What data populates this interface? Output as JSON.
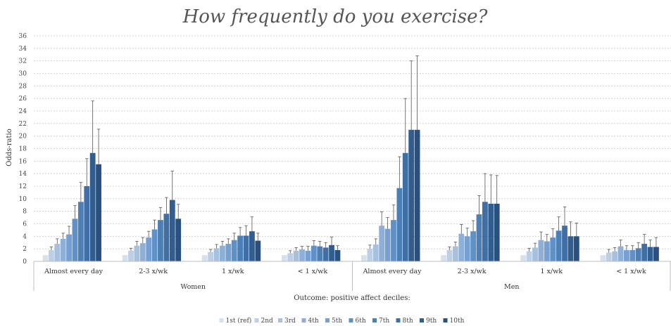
{
  "chart_data": {
    "type": "bar",
    "title": "How frequently do you exercise?",
    "ylabel": "Odds-ratio",
    "xlabel": "Outcome: positive affect deciles:",
    "ylim": [
      0,
      36
    ],
    "yticks": [
      0,
      2,
      4,
      6,
      8,
      10,
      12,
      14,
      16,
      18,
      20,
      22,
      24,
      26,
      28,
      30,
      32,
      34,
      36
    ],
    "grid": true,
    "legend_position": "bottom",
    "groups": [
      {
        "label": "Women",
        "categories": [
          "Almost every day",
          "2-3 x/wk",
          "1 x/wk",
          "< 1 x/wk"
        ]
      },
      {
        "label": "Men",
        "categories": [
          "Almost every day",
          "2-3 x/wk",
          "1 x/wk",
          "< 1 x/wk"
        ]
      }
    ],
    "categories": [
      "Women - Almost every day",
      "Women - 2-3 x/wk",
      "Women - 1 x/wk",
      "Women - < 1 x/wk",
      "Men - Almost every day",
      "Men - 2-3 x/wk",
      "Men - 1 x/wk",
      "Men - < 1 x/wk"
    ],
    "series": [
      {
        "name": "1st (ref)",
        "color": "#d6e1ee",
        "values": [
          1,
          1,
          1,
          1,
          1,
          1,
          1,
          1
        ],
        "error_upper": [
          1,
          1,
          1,
          1,
          1,
          1,
          1,
          1
        ]
      },
      {
        "name": "2nd",
        "color": "#bccfe5",
        "values": [
          1.8,
          1.7,
          1.5,
          1.3,
          2.0,
          1.8,
          1.6,
          1.4
        ],
        "error_upper": [
          2.3,
          2.1,
          1.9,
          1.7,
          2.6,
          2.3,
          2.1,
          1.9
        ]
      },
      {
        "name": "3rd",
        "color": "#a6c0de",
        "values": [
          2.8,
          2.5,
          2.1,
          1.7,
          2.7,
          2.4,
          2.2,
          1.6
        ],
        "error_upper": [
          3.6,
          3.2,
          2.7,
          2.2,
          3.6,
          3.1,
          2.9,
          2.2
        ]
      },
      {
        "name": "4th",
        "color": "#8fb0d6",
        "values": [
          3.6,
          2.9,
          2.5,
          1.9,
          5.7,
          4.4,
          3.4,
          2.4
        ],
        "error_upper": [
          4.5,
          3.8,
          3.2,
          2.4,
          7.9,
          5.9,
          4.7,
          3.4
        ]
      },
      {
        "name": "5th",
        "color": "#75a0d1",
        "values": [
          4.3,
          3.8,
          2.8,
          1.7,
          5.2,
          4.0,
          3.2,
          1.8
        ],
        "error_upper": [
          5.6,
          4.8,
          3.6,
          2.4,
          7.0,
          5.3,
          4.3,
          2.5
        ]
      },
      {
        "name": "6th",
        "color": "#5f90c6",
        "values": [
          6.8,
          5.1,
          3.4,
          2.5,
          6.6,
          4.8,
          3.8,
          1.8
        ],
        "error_upper": [
          8.9,
          6.6,
          4.5,
          3.3,
          9.0,
          6.5,
          5.2,
          2.5
        ]
      },
      {
        "name": "7th",
        "color": "#4d7fb7",
        "values": [
          9.5,
          6.6,
          4.1,
          2.4,
          11.7,
          7.5,
          4.9,
          2.1
        ],
        "error_upper": [
          12.6,
          8.6,
          5.4,
          3.2,
          16.7,
          10.5,
          7.1,
          3.0
        ]
      },
      {
        "name": "8th",
        "color": "#3f6fa5",
        "values": [
          12.0,
          7.6,
          4.1,
          2.2,
          17.3,
          9.5,
          5.7,
          2.8
        ],
        "error_upper": [
          16.4,
          10.2,
          5.7,
          3.0,
          26.0,
          14.0,
          8.7,
          4.3
        ]
      },
      {
        "name": "9th",
        "color": "#325d8f",
        "values": [
          17.3,
          9.8,
          4.8,
          2.6,
          21.0,
          9.2,
          4.0,
          2.3
        ],
        "error_upper": [
          25.6,
          14.4,
          7.1,
          3.9,
          32.0,
          13.8,
          6.3,
          3.4
        ]
      },
      {
        "name": "10th",
        "color": "#2a5080",
        "values": [
          15.5,
          6.8,
          3.3,
          1.8,
          21.0,
          9.2,
          4.0,
          2.3
        ],
        "error_upper": [
          21.1,
          9.1,
          4.5,
          2.5,
          32.8,
          13.7,
          6.1,
          3.8
        ]
      }
    ]
  }
}
